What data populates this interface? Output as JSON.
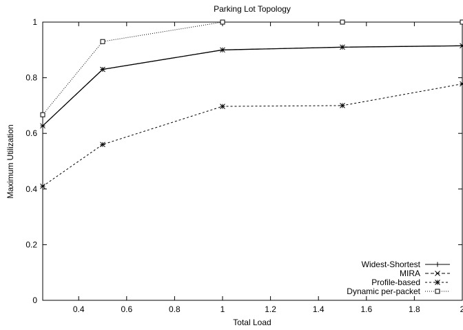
{
  "chart_data": {
    "type": "line",
    "title": "Parking Lot Topology",
    "xlabel": "Total Load",
    "ylabel": "Maximum Utilization",
    "xlim": [
      0.25,
      2.0
    ],
    "ylim": [
      0,
      1.0
    ],
    "x_ticks": [
      0.4,
      0.6,
      0.8,
      1.0,
      1.2,
      1.4,
      1.6,
      1.8,
      2.0
    ],
    "x_tick_labels": [
      "0.4",
      "0.6",
      "0.8",
      "1",
      "1.2",
      "1.4",
      "1.6",
      "1.8",
      "2"
    ],
    "y_ticks": [
      0,
      0.2,
      0.4,
      0.6,
      0.8,
      1.0
    ],
    "y_tick_labels": [
      "0",
      "0.2",
      "0.4",
      "0.6",
      "0.8",
      "1"
    ],
    "grid": false,
    "legend_position": "bottom-right",
    "series": [
      {
        "name": "Widest-Shortest",
        "marker": "plus",
        "dash": "solid",
        "x": [
          0.25,
          0.5,
          1.0,
          1.5,
          2.0
        ],
        "values": [
          0.627,
          0.83,
          0.9,
          0.91,
          0.915
        ]
      },
      {
        "name": "MIRA",
        "marker": "cross",
        "dash": "dashed",
        "x": [
          0.25,
          0.5,
          1.0,
          1.5,
          2.0
        ],
        "values": [
          0.627,
          0.83,
          0.9,
          0.91,
          0.915
        ]
      },
      {
        "name": "Profile-based",
        "marker": "star",
        "dash": "short-dashed",
        "x": [
          0.25,
          0.5,
          1.0,
          1.5,
          2.0
        ],
        "values": [
          0.41,
          0.56,
          0.697,
          0.7,
          0.778
        ]
      },
      {
        "name": "Dynamic per-packet",
        "marker": "square",
        "dash": "dotted",
        "x": [
          0.25,
          0.5,
          1.0,
          1.5,
          2.0
        ],
        "values": [
          0.667,
          0.93,
          1.0,
          1.0,
          1.0
        ]
      }
    ]
  }
}
